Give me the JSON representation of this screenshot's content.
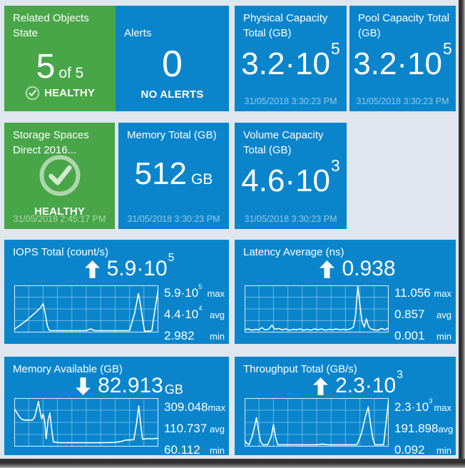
{
  "colors": {
    "background": "#dfe6ee",
    "tile_blue": "#0a85cc",
    "tile_green": "#48a648",
    "timestamp_text": "rgba(255,255,255,0.55)",
    "sparkline_line": "#ffffff",
    "sparkline_grid": "rgba(255,255,255,0.38)"
  },
  "tiles": {
    "related_objects": {
      "title": "Related Objects State",
      "value": "5",
      "of_label": "of 5",
      "status": "HEALTHY"
    },
    "alerts": {
      "title": "Alerts",
      "value": "0",
      "status": "NO ALERTS"
    },
    "physical_capacity": {
      "title": "Physical Capacity Total (GB)",
      "value_base": "3.2·10",
      "value_exp": "5",
      "timestamp": "31/05/2018 3:30:23 PM"
    },
    "pool_capacity": {
      "title": "Pool Capacity Total (GB)",
      "value_base": "3.2·10",
      "value_exp": "5",
      "timestamp": "31/05/2018 3:30:23 PM"
    },
    "storage_spaces": {
      "title": "Storage Spaces Direct 2016...",
      "status": "HEALTHY",
      "timestamp": "31/05/2018 2:45:17 PM"
    },
    "memory_total": {
      "title": "Memory Total (GB)",
      "value": "512",
      "unit": "GB",
      "timestamp": "31/05/2018 3:30:23 PM"
    },
    "volume_capacity": {
      "title": "Volume Capacity Total (GB)",
      "value_base": "4.6·10",
      "value_exp": "3",
      "timestamp": "31/05/2018 3:30:23 PM"
    }
  },
  "chart_data": [
    {
      "type": "line",
      "title": "IOPS Total (count/s)",
      "trend": "up",
      "current_base": "5.9·10",
      "current_exp": "5",
      "current_unit": "",
      "stats": [
        {
          "value": "5.9·10",
          "exp": "5",
          "label": "max"
        },
        {
          "value": "4.4·10",
          "exp": "4",
          "label": "avg"
        },
        {
          "value": "2.982",
          "exp": "",
          "label": "min"
        }
      ],
      "grid": true,
      "points_normalized": true,
      "points": [
        [
          0,
          0.05
        ],
        [
          0.04,
          0.14
        ],
        [
          0.09,
          0.26
        ],
        [
          0.14,
          0.4
        ],
        [
          0.18,
          0.52
        ],
        [
          0.2,
          0.62
        ],
        [
          0.215,
          0.4
        ],
        [
          0.23,
          0.12
        ],
        [
          0.245,
          0.02
        ],
        [
          0.32,
          0.02
        ],
        [
          0.42,
          0.02
        ],
        [
          0.5,
          0.02
        ],
        [
          0.53,
          0.06
        ],
        [
          0.56,
          0.02
        ],
        [
          0.65,
          0.02
        ],
        [
          0.75,
          0.02
        ],
        [
          0.8,
          0.02
        ],
        [
          0.835,
          0.4
        ],
        [
          0.862,
          0.84
        ],
        [
          0.878,
          0.55
        ],
        [
          0.895,
          0.18
        ],
        [
          0.905,
          0.01
        ],
        [
          0.935,
          0.01
        ],
        [
          0.955,
          0.02
        ],
        [
          0.975,
          0.45
        ],
        [
          1,
          0.95
        ]
      ]
    },
    {
      "type": "line",
      "title": "Latency Average (ns)",
      "trend": "up",
      "current_base": "0.938",
      "current_exp": "",
      "current_unit": "",
      "stats": [
        {
          "value": "11.056",
          "exp": "",
          "label": "max"
        },
        {
          "value": "0.857",
          "exp": "",
          "label": "avg"
        },
        {
          "value": "0.001",
          "exp": "",
          "label": "min"
        }
      ],
      "grid": true,
      "points_normalized": true,
      "points": [
        [
          0,
          0.04
        ],
        [
          0.025,
          0.06
        ],
        [
          0.05,
          0.03
        ],
        [
          0.075,
          0.05
        ],
        [
          0.1,
          0.04
        ],
        [
          0.12,
          0.09
        ],
        [
          0.14,
          0.04
        ],
        [
          0.165,
          0.05
        ],
        [
          0.19,
          0.14
        ],
        [
          0.21,
          0.05
        ],
        [
          0.235,
          0.07
        ],
        [
          0.26,
          0.04
        ],
        [
          0.285,
          0.06
        ],
        [
          0.31,
          0.03
        ],
        [
          0.335,
          0.05
        ],
        [
          0.36,
          0.04
        ],
        [
          0.385,
          0.06
        ],
        [
          0.41,
          0.03
        ],
        [
          0.435,
          0.05
        ],
        [
          0.46,
          0.03
        ],
        [
          0.485,
          0.06
        ],
        [
          0.51,
          0.04
        ],
        [
          0.535,
          0.06
        ],
        [
          0.56,
          0.03
        ],
        [
          0.585,
          0.05
        ],
        [
          0.61,
          0.04
        ],
        [
          0.635,
          0.06
        ],
        [
          0.66,
          0.04
        ],
        [
          0.685,
          0.05
        ],
        [
          0.71,
          0.04
        ],
        [
          0.735,
          0.06
        ],
        [
          0.755,
          0.1
        ],
        [
          0.77,
          0.35
        ],
        [
          0.785,
          1.0
        ],
        [
          0.8,
          0.6
        ],
        [
          0.815,
          0.22
        ],
        [
          0.83,
          0.1
        ],
        [
          0.845,
          0.28
        ],
        [
          0.86,
          0.12
        ],
        [
          0.875,
          0.06
        ],
        [
          0.9,
          0.04
        ],
        [
          0.925,
          0.03
        ],
        [
          0.95,
          0.07
        ],
        [
          0.975,
          0.04
        ],
        [
          1,
          0.08
        ]
      ]
    },
    {
      "type": "line",
      "title": "Memory Available (GB)",
      "trend": "down",
      "current_base": "82.913",
      "current_exp": "",
      "current_unit": "GB",
      "stats": [
        {
          "value": "309.048",
          "exp": "",
          "label": "max"
        },
        {
          "value": "110.737",
          "exp": "",
          "label": "avg"
        },
        {
          "value": "60.112",
          "exp": "",
          "label": "min"
        }
      ],
      "grid": true,
      "points_normalized": true,
      "points": [
        [
          0,
          0.8
        ],
        [
          0.02,
          0.7
        ],
        [
          0.045,
          0.58
        ],
        [
          0.07,
          0.55
        ],
        [
          0.1,
          0.55
        ],
        [
          0.125,
          0.55
        ],
        [
          0.14,
          0.6
        ],
        [
          0.155,
          0.78
        ],
        [
          0.168,
          0.95
        ],
        [
          0.18,
          0.72
        ],
        [
          0.19,
          0.58
        ],
        [
          0.2,
          0.68
        ],
        [
          0.21,
          0.55
        ],
        [
          0.222,
          0.15
        ],
        [
          0.235,
          0.55
        ],
        [
          0.247,
          0.7
        ],
        [
          0.26,
          0.35
        ],
        [
          0.272,
          0.08
        ],
        [
          0.32,
          0.065
        ],
        [
          0.4,
          0.065
        ],
        [
          0.5,
          0.065
        ],
        [
          0.6,
          0.065
        ],
        [
          0.7,
          0.07
        ],
        [
          0.74,
          0.09
        ],
        [
          0.77,
          0.12
        ],
        [
          0.8,
          0.125
        ],
        [
          0.83,
          0.13
        ],
        [
          0.85,
          0.5
        ],
        [
          0.864,
          0.85
        ],
        [
          0.878,
          0.45
        ],
        [
          0.89,
          0.14
        ],
        [
          0.92,
          0.15
        ],
        [
          0.96,
          0.15
        ],
        [
          1,
          0.16
        ]
      ]
    },
    {
      "type": "line",
      "title": "Throughput Total (GB/s)",
      "trend": "up",
      "current_base": "2.3·10",
      "current_exp": "3",
      "current_unit": "",
      "stats": [
        {
          "value": "2.3·10",
          "exp": "3",
          "label": "max"
        },
        {
          "value": "191.898",
          "exp": "",
          "label": "avg"
        },
        {
          "value": "0.092",
          "exp": "",
          "label": "min"
        }
      ],
      "grid": true,
      "points_normalized": true,
      "points": [
        [
          0,
          0.12
        ],
        [
          0.015,
          0.05
        ],
        [
          0.03,
          0.02
        ],
        [
          0.05,
          0.18
        ],
        [
          0.07,
          0.42
        ],
        [
          0.082,
          0.6
        ],
        [
          0.095,
          0.35
        ],
        [
          0.11,
          0.1
        ],
        [
          0.125,
          0.02
        ],
        [
          0.16,
          0.02
        ],
        [
          0.185,
          0.2
        ],
        [
          0.2,
          0.45
        ],
        [
          0.215,
          0.18
        ],
        [
          0.23,
          0.02
        ],
        [
          0.3,
          0.02
        ],
        [
          0.4,
          0.02
        ],
        [
          0.5,
          0.02
        ],
        [
          0.54,
          0.035
        ],
        [
          0.58,
          0.02
        ],
        [
          0.68,
          0.02
        ],
        [
          0.78,
          0.02
        ],
        [
          0.81,
          0.25
        ],
        [
          0.838,
          0.62
        ],
        [
          0.858,
          0.83
        ],
        [
          0.875,
          0.45
        ],
        [
          0.89,
          0.15
        ],
        [
          0.905,
          0.02
        ],
        [
          0.94,
          0.02
        ],
        [
          0.965,
          0.02
        ],
        [
          0.978,
          0.4
        ],
        [
          1,
          1.0
        ]
      ]
    }
  ]
}
